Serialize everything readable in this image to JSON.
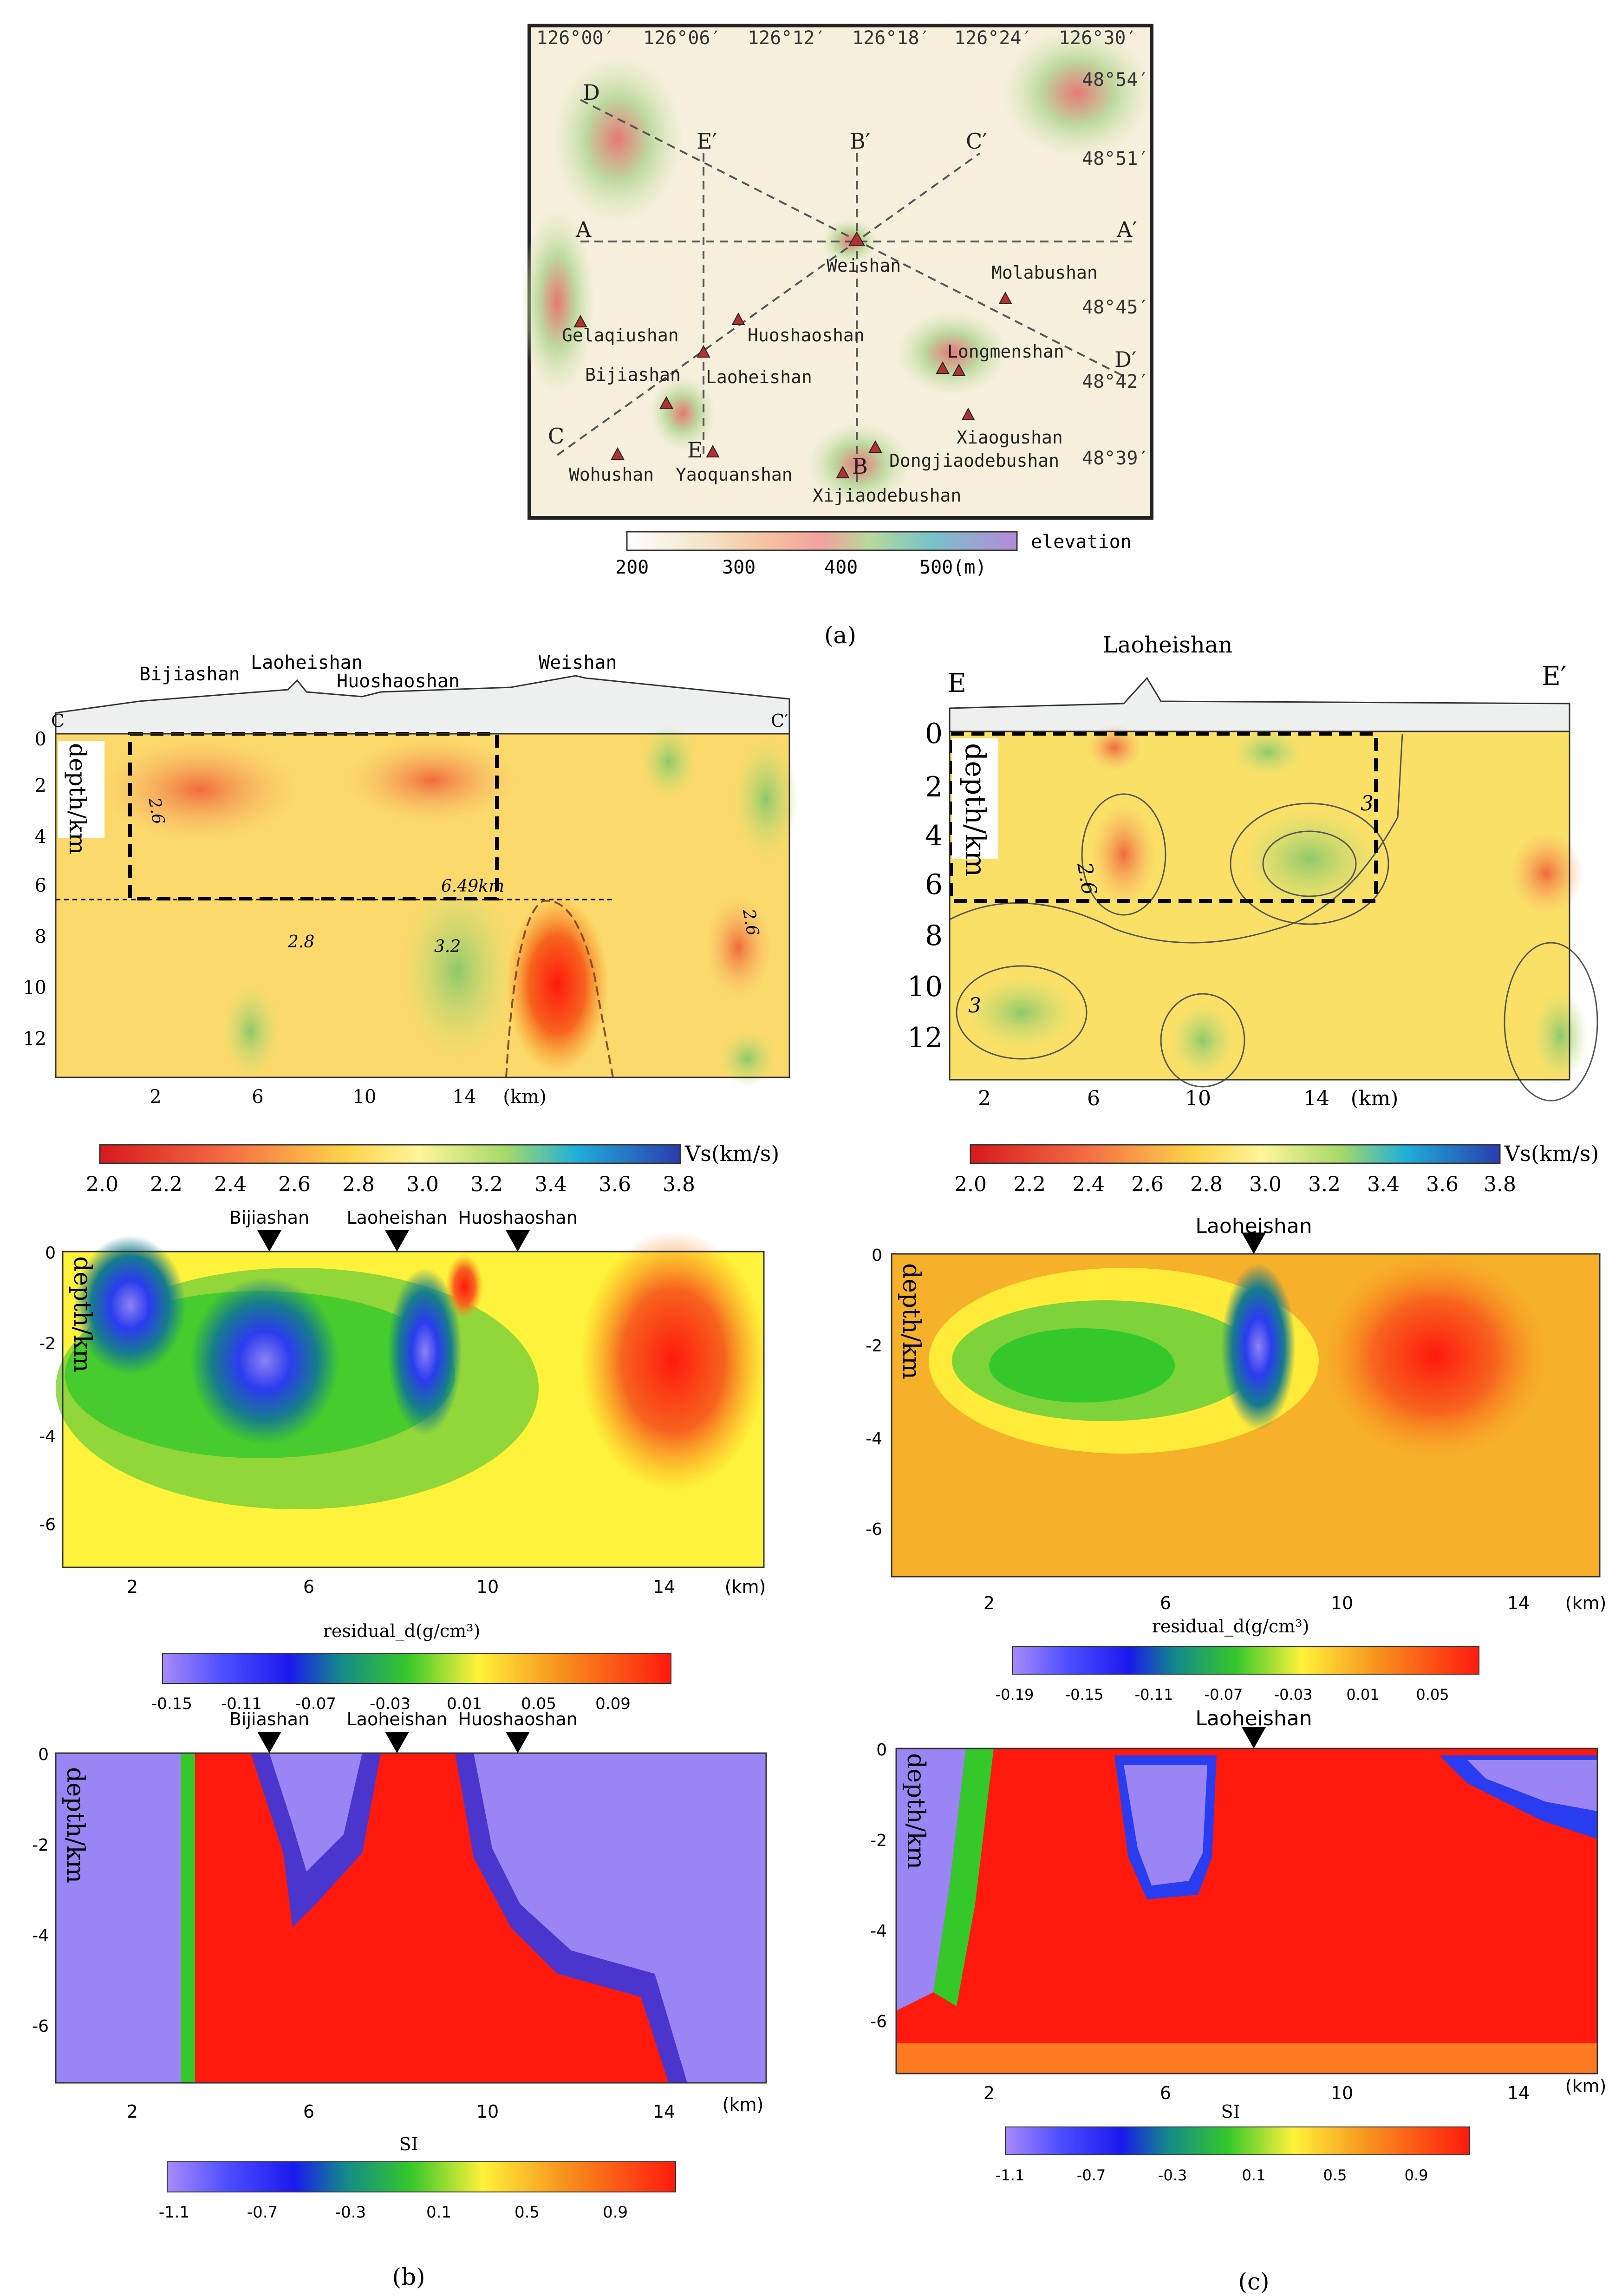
{
  "figure_labels": {
    "a": "(a)",
    "b": "(b)",
    "c": "(c)"
  },
  "map": {
    "lon_labels": [
      "126°00′",
      "126°06′",
      "126°12′",
      "126°18′",
      "126°24′",
      "126°30′"
    ],
    "lat_labels": [
      "48°54′",
      "48°51′",
      "48°45′",
      "48°42′",
      "48°39′"
    ],
    "profile_ends": [
      "A",
      "A′",
      "B",
      "B′",
      "C",
      "C′",
      "D",
      "D′",
      "E",
      "E′"
    ],
    "volcanoes": [
      "Weishan",
      "Molabushan",
      "Gelaqiushan",
      "Huoshaoshan",
      "Bijiashan",
      "Laoheishan",
      "Longmenshan",
      "Xiaogushan",
      "Wohushan",
      "Yaoquanshan",
      "Dongjiaodebushan",
      "Xijiaodebushan"
    ],
    "elevation_label": "elevation",
    "elevation_ticks": [
      "200",
      "300",
      "400",
      "500(m)"
    ]
  },
  "axes": {
    "depth_label": "depth/km",
    "km_label": "(km)",
    "x_ticks": [
      "2",
      "6",
      "10",
      "14"
    ],
    "vs_depth_ticks": [
      "0",
      "2",
      "4",
      "6",
      "8",
      "10",
      "12"
    ],
    "neg_depth_ticks": [
      "0",
      "-2",
      "-4",
      "-6"
    ]
  },
  "vs_colorbar": {
    "label": "Vs(km/s)",
    "ticks": [
      "2.0",
      "2.2",
      "2.4",
      "2.6",
      "2.8",
      "3.0",
      "3.2",
      "3.4",
      "3.6",
      "3.8"
    ]
  },
  "b_vs": {
    "start": "C",
    "end": "C′",
    "peaks": [
      "Bijiashan",
      "Laoheishan",
      "Huoshaoshan",
      "Weishan"
    ],
    "annotations": [
      "2.6",
      "6.49km",
      "2.8",
      "3.2",
      "2.6"
    ]
  },
  "c_vs": {
    "start": "E",
    "end": "E′",
    "peaks": [
      "Laoheishan"
    ],
    "annotations": [
      "2.6",
      "3",
      "3"
    ]
  },
  "b_density": {
    "markers": [
      "Bijiashan",
      "Laoheishan",
      "Huoshaoshan"
    ],
    "colorbar_label": "residual_d(g/cm³)",
    "colorbar_ticks": [
      "-0.15",
      "-0.11",
      "-0.07",
      "-0.03",
      "0.01",
      "0.05",
      "0.09"
    ]
  },
  "c_density": {
    "markers": [
      "Laoheishan"
    ],
    "colorbar_label": "residual_d(g/cm³)",
    "colorbar_ticks": [
      "-0.19",
      "-0.15",
      "-0.11",
      "-0.07",
      "-0.03",
      "0.01",
      "0.05"
    ]
  },
  "b_si": {
    "markers": [
      "Bijiashan",
      "Laoheishan",
      "Huoshaoshan"
    ],
    "colorbar_label": "SI",
    "colorbar_ticks": [
      "-1.1",
      "-0.7",
      "-0.3",
      "0.1",
      "0.5",
      "0.9"
    ]
  },
  "c_si": {
    "markers": [
      "Laoheishan"
    ],
    "colorbar_label": "SI",
    "colorbar_ticks": [
      "-1.1",
      "-0.7",
      "-0.3",
      "0.1",
      "0.5",
      "0.9"
    ]
  },
  "colors": {
    "red": "#e8261c",
    "orange": "#f7931e",
    "yellow": "#fff23a",
    "green": "#7ed23a",
    "blue": "#2a3cf0",
    "violet": "#9b84f4"
  }
}
